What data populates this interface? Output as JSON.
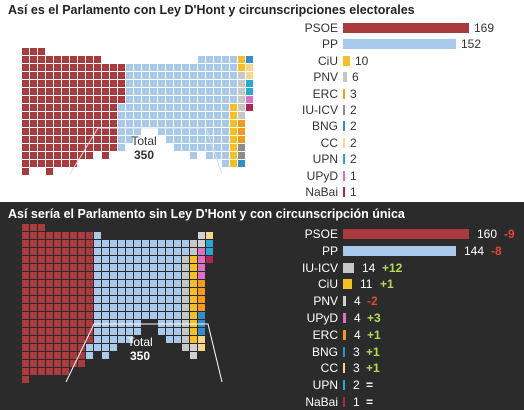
{
  "chart_data": [
    {
      "type": "bar",
      "title": "Así es el Parlamento con Ley D'Hont y circunscripciones electorales",
      "total_label": "Total",
      "total_value": "350",
      "parties": [
        {
          "name": "PSOE",
          "seats": 169,
          "color": "#a93a3e"
        },
        {
          "name": "PP",
          "seats": 152,
          "color": "#a9c9ec"
        },
        {
          "name": "CiU",
          "seats": 10,
          "color": "#f6c021"
        },
        {
          "name": "PNV",
          "seats": 6,
          "color": "#c7c7c7"
        },
        {
          "name": "ERC",
          "seats": 3,
          "color": "#f39a1c"
        },
        {
          "name": "IU-ICV",
          "seats": 2,
          "color": "#8c8c8c"
        },
        {
          "name": "BNG",
          "seats": 2,
          "color": "#2f8fd0"
        },
        {
          "name": "CC",
          "seats": 2,
          "color": "#f7d58a"
        },
        {
          "name": "UPN",
          "seats": 2,
          "color": "#27a7d3"
        },
        {
          "name": "UPyD",
          "seats": 1,
          "color": "#e06fc9"
        },
        {
          "name": "NaBai",
          "seats": 1,
          "color": "#b22552"
        }
      ]
    },
    {
      "type": "bar",
      "title": "Así sería el Parlamento sin Ley D'Hont y con circunscripción única",
      "total_label": "Total",
      "total_value": "350",
      "parties": [
        {
          "name": "PSOE",
          "seats": 160,
          "diff": "-9",
          "diff_color": "#e0463a",
          "color": "#a93a3e"
        },
        {
          "name": "PP",
          "seats": 144,
          "diff": "-8",
          "diff_color": "#e0463a",
          "color": "#a9c9ec"
        },
        {
          "name": "IU-ICV",
          "seats": 14,
          "diff": "+12",
          "diff_color": "#b7d957",
          "color": "#c7c7c7"
        },
        {
          "name": "CiU",
          "seats": 11,
          "diff": "+1",
          "diff_color": "#b7d957",
          "color": "#f6c021"
        },
        {
          "name": "PNV",
          "seats": 4,
          "diff": "-2",
          "diff_color": "#e0463a",
          "color": "#d0d0d0"
        },
        {
          "name": "UPyD",
          "seats": 4,
          "diff": "+3",
          "diff_color": "#b7d957",
          "color": "#e06fc9"
        },
        {
          "name": "ERC",
          "seats": 4,
          "diff": "+1",
          "diff_color": "#b7d957",
          "color": "#f39a1c"
        },
        {
          "name": "BNG",
          "seats": 3,
          "diff": "+1",
          "diff_color": "#b7d957",
          "color": "#2f8fd0"
        },
        {
          "name": "CC",
          "seats": 3,
          "diff": "+1",
          "diff_color": "#b7d957",
          "color": "#f7d58a"
        },
        {
          "name": "UPN",
          "seats": 2,
          "diff": "=",
          "diff_color": "#ffffff",
          "color": "#27a7d3"
        },
        {
          "name": "NaBai",
          "seats": 1,
          "diff": "=",
          "diff_color": "#ffffff",
          "color": "#b22552"
        }
      ]
    }
  ]
}
